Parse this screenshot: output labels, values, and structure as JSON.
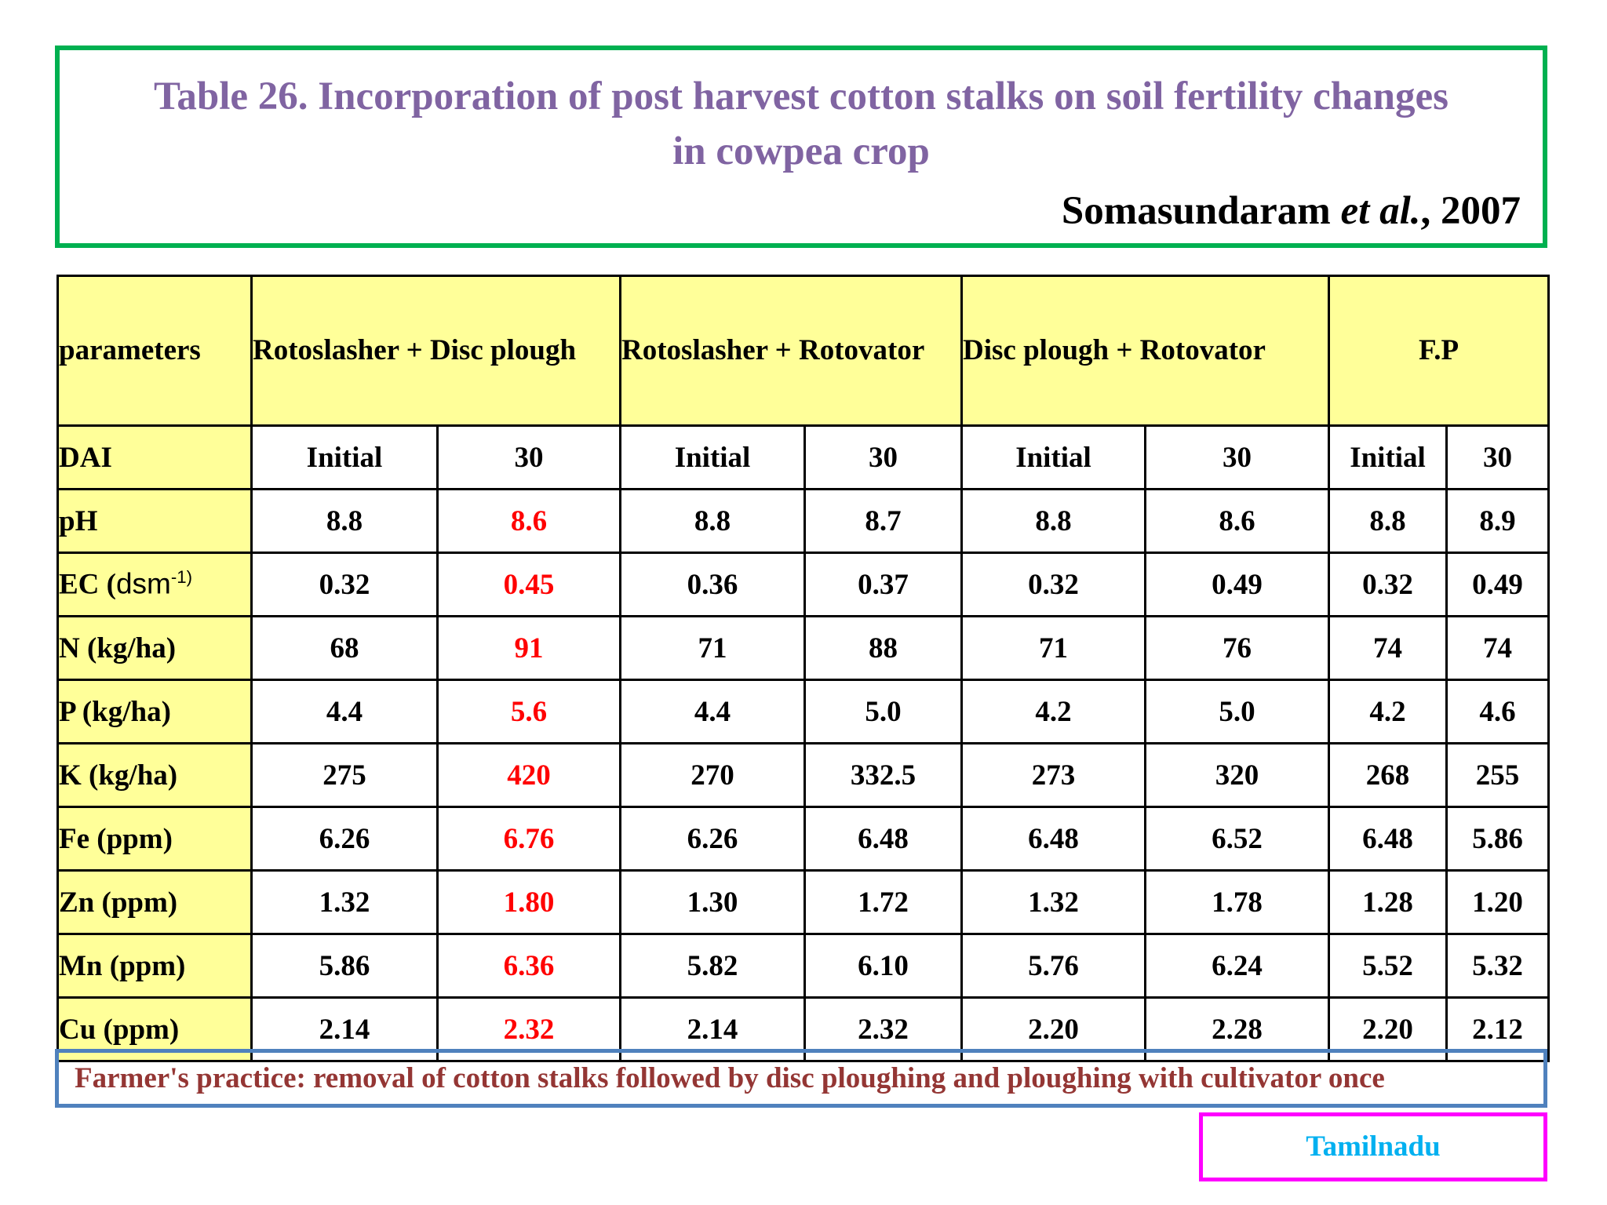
{
  "title": {
    "line1": "Table 26. Incorporation of post harvest cotton stalks on soil fertility changes",
    "line2": "in cowpea crop"
  },
  "citation": {
    "author": "Somasundaram ",
    "etal": "et al.",
    "year": ", 2007"
  },
  "table": {
    "param_header": "parameters",
    "treatments": [
      "Rotoslasher + Disc plough",
      "Rotoslasher + Rotovator",
      "Disc plough + Rotovator",
      "F.P"
    ],
    "dai": {
      "label": "DAI",
      "initial": "Initial",
      "day30": "30"
    },
    "rows": [
      {
        "param": "pH",
        "values": [
          "8.8",
          "8.6",
          "8.8",
          "8.7",
          "8.8",
          "8.6",
          "8.8",
          "8.9"
        ]
      },
      {
        "param_main": "EC (",
        "param_unit": "dsm",
        "param_sup": "-1)",
        "values": [
          "0.32",
          "0.45",
          "0.36",
          "0.37",
          "0.32",
          "0.49",
          "0.32",
          "0.49"
        ]
      },
      {
        "param": "N (kg/ha)",
        "values": [
          "68",
          "91",
          "71",
          "88",
          "71",
          "76",
          "74",
          "74"
        ]
      },
      {
        "param": "P (kg/ha)",
        "values": [
          "4.4",
          "5.6",
          "4.4",
          "5.0",
          "4.2",
          "5.0",
          "4.2",
          "4.6"
        ]
      },
      {
        "param": "K (kg/ha)",
        "values": [
          "275",
          "420",
          "270",
          "332.5",
          "273",
          "320",
          "268",
          "255"
        ]
      },
      {
        "param": "Fe (ppm)",
        "values": [
          "6.26",
          "6.76",
          "6.26",
          "6.48",
          "6.48",
          "6.52",
          "6.48",
          "5.86"
        ]
      },
      {
        "param": "Zn (ppm)",
        "values": [
          "1.32",
          "1.80",
          "1.30",
          "1.72",
          "1.32",
          "1.78",
          "1.28",
          "1.20"
        ]
      },
      {
        "param": "Mn (ppm)",
        "values": [
          "5.86",
          "6.36",
          "5.82",
          "6.10",
          "5.76",
          "6.24",
          "5.52",
          "5.32"
        ]
      },
      {
        "param": "Cu (ppm)",
        "values": [
          "2.14",
          "2.32",
          "2.14",
          "2.32",
          "2.20",
          "2.28",
          "2.20",
          "2.12"
        ]
      }
    ]
  },
  "note": "Farmer's practice: removal of cotton stalks followed by disc ploughing and ploughing with cultivator once",
  "region": "Tamilnadu",
  "colors": {
    "title": "#8064A2",
    "title_border": "#00B050",
    "header_fill": "#FFFF99",
    "highlight": "#FF0000",
    "note_text": "#943634",
    "note_border": "#4F81BD",
    "region_text": "#00B0F0",
    "region_border": "#FF00FF"
  }
}
